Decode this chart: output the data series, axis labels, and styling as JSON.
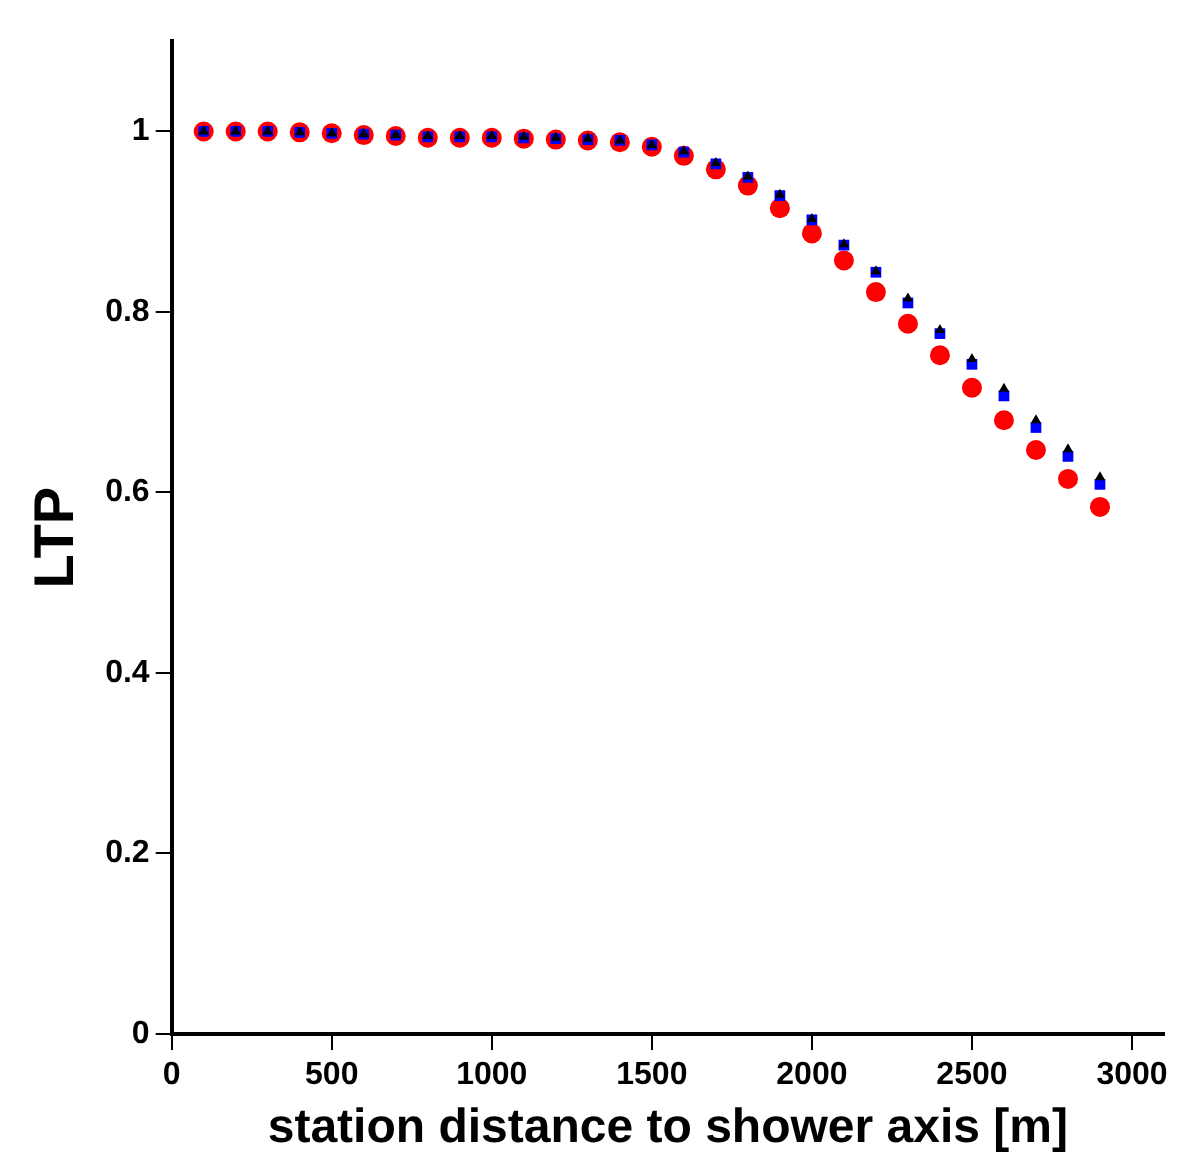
{
  "chart_data": {
    "type": "scatter",
    "xlabel": "station distance to shower axis [m]",
    "ylabel": "LTP",
    "x": [
      100,
      200,
      300,
      400,
      500,
      600,
      700,
      800,
      900,
      1000,
      1100,
      1200,
      1300,
      1400,
      1500,
      1600,
      1700,
      1800,
      1900,
      2000,
      2100,
      2200,
      2300,
      2400,
      2500,
      2600,
      2700,
      2800,
      2900
    ],
    "series": [
      {
        "color": "#ff0000",
        "marker": "circle",
        "values": [
          1.0,
          1.0,
          1.0,
          0.999,
          0.998,
          0.996,
          0.995,
          0.993,
          0.993,
          0.993,
          0.992,
          0.991,
          0.99,
          0.988,
          0.983,
          0.973,
          0.958,
          0.94,
          0.915,
          0.887,
          0.857,
          0.822,
          0.787,
          0.752,
          0.716,
          0.68,
          0.647,
          0.615,
          0.584
        ]
      },
      {
        "color": "#0000ff",
        "marker": "square",
        "values": [
          1.0,
          1.0,
          1.0,
          0.999,
          0.998,
          0.997,
          0.996,
          0.994,
          0.994,
          0.994,
          0.993,
          0.992,
          0.991,
          0.99,
          0.985,
          0.977,
          0.964,
          0.949,
          0.929,
          0.902,
          0.874,
          0.844,
          0.81,
          0.776,
          0.742,
          0.707,
          0.672,
          0.64,
          0.609
        ]
      },
      {
        "color": "#000000",
        "marker": "triangle",
        "values": [
          1.0,
          1.0,
          1.0,
          0.999,
          0.998,
          0.997,
          0.996,
          0.995,
          0.995,
          0.995,
          0.994,
          0.993,
          0.992,
          0.99,
          0.985,
          0.978,
          0.965,
          0.95,
          0.93,
          0.903,
          0.875,
          0.845,
          0.815,
          0.78,
          0.748,
          0.715,
          0.68,
          0.648,
          0.617
        ]
      }
    ],
    "xlim": [
      0,
      3100
    ],
    "xticks": [
      0,
      500,
      1000,
      1500,
      2000,
      2500,
      3000
    ],
    "ylim": [
      0,
      1.1
    ],
    "yticks": [
      0,
      {
        "value": 0.2,
        "label": "0.2"
      },
      {
        "value": 0.4,
        "label": "0.4"
      },
      {
        "value": 0.6,
        "label": "0.6"
      },
      {
        "value": 0.8,
        "label": "0.8"
      },
      1
    ],
    "grid": false,
    "legend": false
  }
}
